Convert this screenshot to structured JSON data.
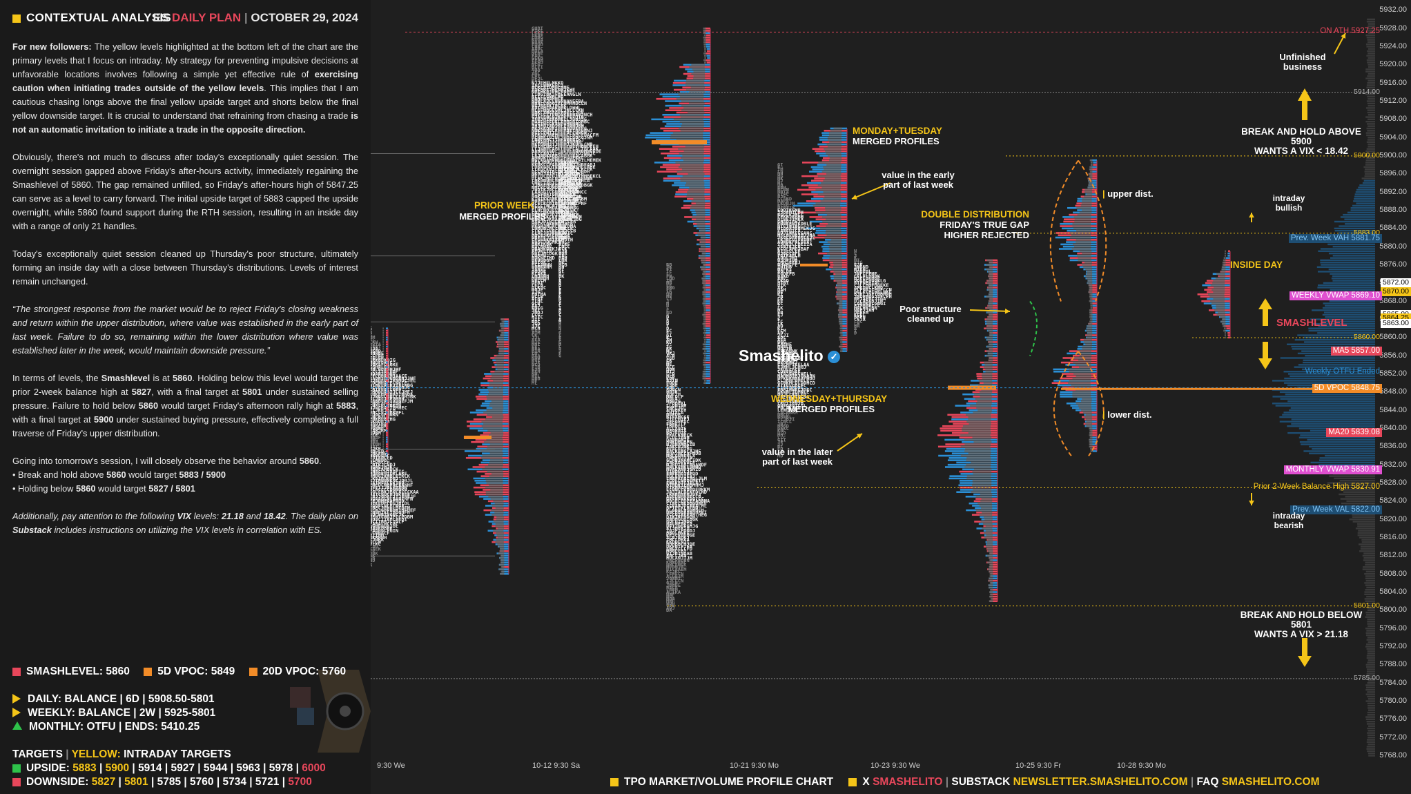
{
  "header": {
    "left_title": "CONTEXTUAL ANALYSIS",
    "plan_prefix": "ES",
    "plan_word": "DAILY PLAN",
    "date": "OCTOBER 29, 2024"
  },
  "body": {
    "p1_lead": "For new followers:",
    "p1_text_a": " The yellow levels highlighted at the bottom left of the chart are the primary levels that I focus on intraday. My strategy for preventing impulsive decisions at unfavorable locations involves following a simple yet effective rule of ",
    "p1_bold_a": "exercising caution when initiating trades outside of the yellow levels",
    "p1_text_b": ". This implies that I am cautious chasing longs above the final yellow upside target and shorts below the final yellow downside target. It is crucial to understand that refraining from chasing a trade ",
    "p1_bold_b": "is not an automatic invitation to initiate a trade in the opposite direction.",
    "p2": "Obviously, there's not much to discuss after today's exceptionally quiet session. The overnight session gapped above Friday's after-hours activity, immediately regaining the Smashlevel of 5860. The gap remained unfilled, so Friday's after-hours high of 5847.25 can serve as a level to carry forward. The initial upside target of 5883 capped the upside overnight, while 5860 found support during the RTH session, resulting in an inside day with a range of only 21 handles.",
    "p3": "Today's exceptionally quiet session cleaned up Thursday's poor structure, ultimately forming an inside day with a close between Thursday's distributions. Levels of interest remain unchanged.",
    "p4": "“The strongest response from the market would be to reject Friday's closing weakness and return within the upper distribution, where value was established in the early part of last week. Failure to do so, remaining within the lower distribution where value was established later in the week, would maintain downside pressure.”",
    "p5_a": "In terms of levels, the ",
    "p5_b": "Smashlevel",
    "p5_c": " is at ",
    "p5_d": "5860",
    "p5_e": ". Holding below this level would target the prior 2-week balance high at ",
    "p5_f": "5827",
    "p5_g": ", with a final target at ",
    "p5_h": "5801",
    "p5_i": " under sustained selling pressure. Failure to hold below ",
    "p5_j": "5860",
    "p5_k": " would target Friday's afternoon rally high at ",
    "p5_l": "5883",
    "p5_m": ", with a final target at ",
    "p5_n": "5900",
    "p5_o": " under sustained buying pressure, effectively completing a full traverse of Friday's upper distribution.",
    "p6_a": "Going into tomorrow's session, I will closely observe the behavior around ",
    "p6_b": "5860",
    "p6_c": ".",
    "b1_a": "• Break and hold above ",
    "b1_b": "5860",
    "b1_c": " would target ",
    "b1_d": "5883 / 5900",
    "b2_a": "• Holding below ",
    "b2_b": "5860",
    "b2_c": " would target ",
    "b2_d": "5827 / 5801",
    "p7_a": "Additionally, pay attention to the following ",
    "p7_b": "VIX",
    "p7_c": " levels: ",
    "p7_d": "21.18",
    "p7_e": " and ",
    "p7_f": "18.42",
    "p7_g": ". The daily plan on ",
    "p7_h": "Substack",
    "p7_i": " includes instructions on utilizing the VIX levels in correlation with ES."
  },
  "summary": {
    "smashlevel": "SMASHLEVEL: 5860",
    "vpoc5": "5D VPOC: 5849",
    "vpoc20": "20D VPOC: 5760",
    "daily": "DAILY: BALANCE | 6D | 5908.50-5801",
    "weekly": "WEEKLY: BALANCE | 2W | 5925-5801",
    "monthly": "MONTHLY: OTFU | ENDS: 5410.25",
    "targets_a": "TARGETS",
    "targets_b": "YELLOW:",
    "targets_c": "INTRADAY TARGETS",
    "upside_label": "UPSIDE:",
    "upside_y1": "5883",
    "upside_y2": "5900",
    "upside_rest": "5914 | 5927 | 5944 | 5963 | 5978 |",
    "upside_red": "6000",
    "downside_label": "DOWNSIDE:",
    "downside_y1": "5827",
    "downside_y2": "5801",
    "downside_rest": "5785 | 5760 | 5734 | 5721 |",
    "downside_red": "5700"
  },
  "colors": {
    "yellow": "#f5c518",
    "red": "#e8475b",
    "orange": "#f28c28",
    "green": "#2ec24a",
    "blue": "#2b8fd6"
  },
  "chart_data": {
    "type": "tpo_volume_profile",
    "y_axis": {
      "ticks": [
        "5932.00",
        "5928.00",
        "5924.00",
        "5920.00",
        "5916.00",
        "5912.00",
        "5908.00",
        "5904.00",
        "5900.00",
        "5896.00",
        "5892.00",
        "5888.00",
        "5884.00",
        "5880.00",
        "5876.00",
        "5872.00",
        "5868.00",
        "5864.00",
        "5860.00",
        "5856.00",
        "5852.00",
        "5848.00",
        "5844.00",
        "5840.00",
        "5836.00",
        "5832.00",
        "5828.00",
        "5824.00",
        "5820.00",
        "5816.00",
        "5812.00",
        "5808.00",
        "5804.00",
        "5800.00",
        "5796.00",
        "5792.00",
        "5788.00",
        "5784.00",
        "5780.00",
        "5776.00",
        "5772.00",
        "5768.00"
      ],
      "range": [
        5766,
        5934
      ]
    },
    "x_labels": [
      "9:30 We",
      "10-12 9:30 Sa",
      "10-21 9:30 Mo",
      "10-23 9:30 We",
      "10-25 9:30 Fr",
      "10-28 9:30 Mo"
    ],
    "levels": [
      {
        "label": "ON ATH",
        "value": "5927.25",
        "color": "#e8475b"
      },
      {
        "label": "",
        "value": "5914.00",
        "color": "#aaaaaa"
      },
      {
        "label": "",
        "value": "5900.00",
        "color": "#f5c518"
      },
      {
        "label": "",
        "value": "5883.00",
        "color": "#f5c518"
      },
      {
        "label": "Prev. Week VAH",
        "value": "5881.75",
        "color": "#2b8fd6"
      },
      {
        "label": "",
        "value": "5872.00",
        "color": "#ffffff"
      },
      {
        "label": "",
        "value": "5870.00",
        "color": "#f5c518"
      },
      {
        "label": "WEEKLY VWAP",
        "value": "5869.10",
        "color": "#e04fd0"
      },
      {
        "label": "",
        "value": "5865.00",
        "color": "#ffffff"
      },
      {
        "label": "",
        "value": "5864.25",
        "color": "#f5c518"
      },
      {
        "label": "",
        "value": "5863.00",
        "color": "#ffffff"
      },
      {
        "label": "",
        "value": "5860.00",
        "color": "#f5c518"
      },
      {
        "label": "MA5",
        "value": "5857.00",
        "color": "#e8475b"
      },
      {
        "label": "Weekly OTFU Ended",
        "value": "",
        "color": "#2b8fd6"
      },
      {
        "label": "5D VPOC",
        "value": "5848.75",
        "color": "#f28c28"
      },
      {
        "label": "MA20",
        "value": "5839.08",
        "color": "#e8475b"
      },
      {
        "label": "MONTHLY VWAP",
        "value": "5830.91",
        "color": "#e04fd0"
      },
      {
        "label": "Prior 2-Week Balance High",
        "value": "5827.00",
        "color": "#f5c518"
      },
      {
        "label": "Prev. Week VAL",
        "value": "5822.00",
        "color": "#2b8fd6"
      },
      {
        "label": "",
        "value": "5801.00",
        "color": "#f5c518"
      },
      {
        "label": "",
        "value": "5785.00",
        "color": "#aaaaaa"
      }
    ],
    "annotations": {
      "unfinished": "Unfinished business",
      "break_above": "BREAK AND HOLD ABOVE 5900",
      "vix_above": "WANTS A VIX < 18.42",
      "break_below": "BREAK AND HOLD BELOW 5801",
      "vix_below": "WANTS A VIX > 21.18",
      "intraday_bullish": "intraday bullish",
      "intraday_bearish": "intraday bearish",
      "inside_day": "INSIDE DAY",
      "smashlevel": "SMASHLEVEL",
      "upper_dist": "upper dist.",
      "lower_dist": "lower dist.",
      "double_dist_1": "DOUBLE DISTRIBUTION",
      "double_dist_2": "FRIDAY'S TRUE GAP",
      "double_dist_3": "HIGHER REJECTED",
      "poor_structure": "Poor structure cleaned up",
      "mon_tue_1": "MONDAY+TUESDAY",
      "mon_tue_2": "MERGED PROFILES",
      "value_early": "value in the early part of last week",
      "prior_week_1": "PRIOR WEEK",
      "prior_week_2": "MERGED PROFILES",
      "wed_thu_1": "WEDNESDAY+THURSDAY",
      "wed_thu_2": "MERGED PROFILES",
      "value_later": "value in the later part of last week",
      "logo": "Smashelito"
    }
  },
  "footer": {
    "item1": "TPO MARKET/VOLUME PROFILE CHART",
    "item2_a": "X",
    "item2_b": "SMASHELITO",
    "item3_a": "SUBSTACK",
    "item3_b": "NEWSLETTER.SMASHELITO.COM",
    "item4_a": "FAQ",
    "item4_b": "SMASHELITO.COM"
  }
}
